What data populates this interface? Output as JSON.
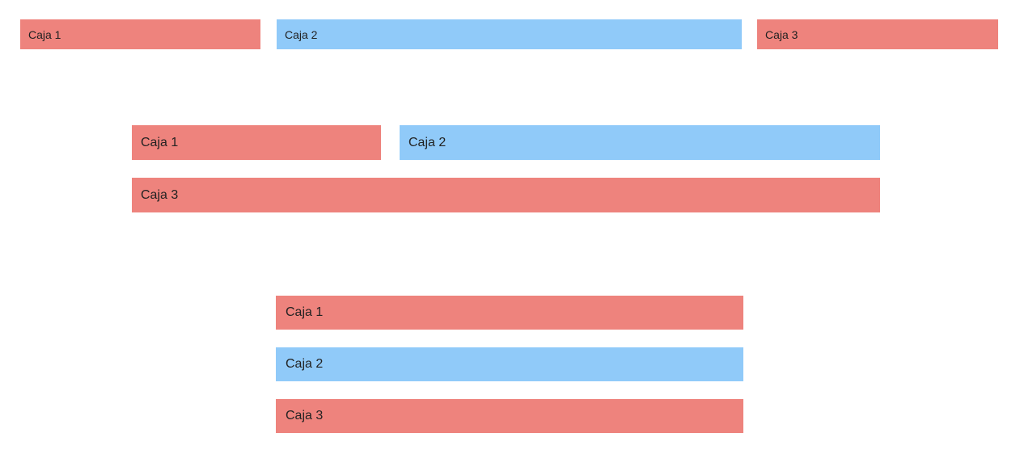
{
  "colors": {
    "box_red": "#ee837d",
    "box_blue": "#90caf9",
    "text": "#222222",
    "background": "#ffffff"
  },
  "layout_1": {
    "boxes": [
      {
        "label": "Caja 1",
        "color": "#ee837d"
      },
      {
        "label": "Caja 2",
        "color": "#90caf9"
      },
      {
        "label": "Caja 3",
        "color": "#ee837d"
      }
    ]
  },
  "layout_2": {
    "boxes": [
      {
        "label": "Caja 1",
        "color": "#ee837d"
      },
      {
        "label": "Caja 2",
        "color": "#90caf9"
      },
      {
        "label": "Caja 3",
        "color": "#ee837d"
      }
    ]
  },
  "layout_3": {
    "boxes": [
      {
        "label": "Caja 1",
        "color": "#ee837d"
      },
      {
        "label": "Caja 2",
        "color": "#90caf9"
      },
      {
        "label": "Caja 3",
        "color": "#ee837d"
      }
    ]
  }
}
